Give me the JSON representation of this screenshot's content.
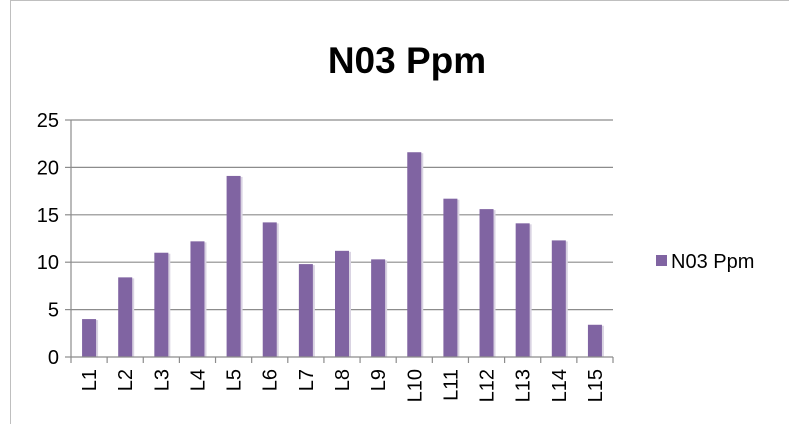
{
  "chart_data": {
    "type": "bar",
    "title": "N03 Ppm",
    "xlabel": "",
    "ylabel": "",
    "categories": [
      "L1",
      "L2",
      "L3",
      "L4",
      "L5",
      "L6",
      "L7",
      "L8",
      "L9",
      "L10",
      "L11",
      "L12",
      "L13",
      "L14",
      "L15"
    ],
    "series": [
      {
        "name": "N03 Ppm",
        "values": [
          4,
          8.4,
          11,
          12.2,
          19.1,
          14.2,
          9.8,
          11.2,
          10.3,
          21.6,
          16.7,
          15.6,
          14.1,
          12.3,
          3.4
        ],
        "color": "#8064a2"
      }
    ],
    "ylim": [
      0,
      25
    ],
    "yticks": [
      "0",
      "5",
      "10",
      "15",
      "20",
      "25"
    ],
    "grid": true,
    "legend_position": "right"
  }
}
